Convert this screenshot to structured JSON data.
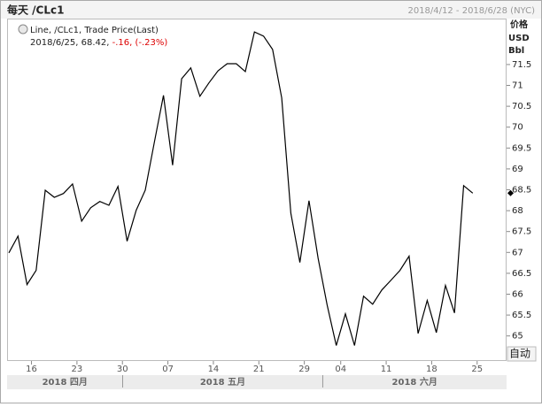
{
  "chart_data": {
    "type": "line",
    "title": "每天 /CLc1",
    "date_range": "2018/4/12 - 2018/6/28 (NYC)",
    "legend": {
      "series_label": "Line, /CLc1, Trade Price(Last)",
      "info_plain": "2018/6/25, 68.42, ",
      "info_change": "-.16, (-.23%)"
    },
    "axis_header": [
      "价格",
      "USD",
      "Bbl"
    ],
    "axis_mode": "自动",
    "months": [
      "2018 四月",
      "2018 五月",
      "2018 六月"
    ],
    "categories": [
      null,
      null,
      "16",
      null,
      null,
      null,
      null,
      "23",
      null,
      null,
      null,
      null,
      "30",
      null,
      null,
      null,
      null,
      "07",
      null,
      null,
      null,
      null,
      "14",
      null,
      null,
      null,
      null,
      "21",
      null,
      null,
      null,
      null,
      "29",
      null,
      null,
      null,
      "04",
      null,
      null,
      null,
      null,
      "11",
      null,
      null,
      null,
      null,
      "18",
      null,
      null,
      null,
      null,
      "25",
      null,
      null,
      null
    ],
    "series": [
      {
        "name": "/CLc1",
        "color": "#000000",
        "values": [
          66.99,
          67.39,
          66.23,
          66.57,
          68.49,
          68.32,
          68.41,
          68.64,
          67.75,
          68.07,
          68.22,
          68.13,
          68.58,
          67.27,
          68.01,
          68.49,
          69.64,
          70.76,
          69.09,
          71.16,
          71.42,
          70.74,
          71.06,
          71.35,
          71.52,
          71.52,
          71.33,
          72.28,
          72.18,
          71.86,
          70.7,
          67.94,
          66.76,
          68.24,
          66.86,
          65.74,
          64.77,
          65.53,
          64.77,
          65.95,
          65.76,
          66.1,
          66.33,
          66.57,
          66.91,
          65.06,
          65.85,
          65.08,
          66.21,
          65.55,
          68.6,
          68.42,
          null,
          null,
          null
        ]
      }
    ],
    "ylim": [
      64.4,
      72.6
    ],
    "yticks": [
      65,
      65.5,
      66,
      66.5,
      67,
      67.5,
      68,
      68.5,
      69,
      69.5,
      70,
      70.5,
      71,
      71.5
    ],
    "grid": false
  }
}
